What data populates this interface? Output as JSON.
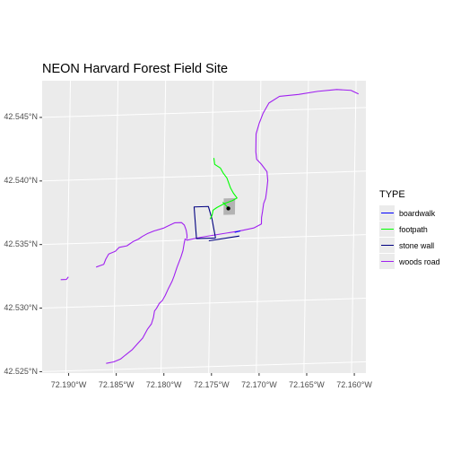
{
  "title": "NEON Harvard Forest Field Site",
  "chart_data": {
    "type": "map",
    "title": "NEON Harvard Forest Field Site",
    "crs": "geographic lon/lat",
    "xlim": [
      -72.1925,
      -72.1585
    ],
    "ylim": [
      42.5245,
      42.5475
    ],
    "x_ticks": [
      -72.19,
      -72.185,
      -72.18,
      -72.175,
      -72.17,
      -72.165,
      -72.16
    ],
    "x_tick_labels": [
      "72.190°W",
      "72.185°W",
      "72.180°W",
      "72.175°W",
      "72.170°W",
      "72.165°W",
      "72.160°W"
    ],
    "y_ticks": [
      42.525,
      42.53,
      42.535,
      42.54,
      42.545
    ],
    "y_tick_labels": [
      "42.525°N",
      "42.530°N",
      "42.535°N",
      "42.540°N",
      "42.545°N"
    ],
    "grid": true,
    "legend": {
      "title": "TYPE",
      "position": "right",
      "entries": [
        {
          "label": "boardwalk",
          "color": "#0000ff"
        },
        {
          "label": "footpath",
          "color": "#00ff00"
        },
        {
          "label": "stone wall",
          "color": "#000080"
        },
        {
          "label": "woods road",
          "color": "#a020f0"
        }
      ]
    },
    "plot_area": {
      "type": "polygon",
      "fill": "#b3b3b3",
      "coords": [
        [
          -72.1737,
          42.5382
        ],
        [
          -72.1725,
          42.5382
        ],
        [
          -72.1725,
          42.5369
        ],
        [
          -72.1737,
          42.5369
        ]
      ]
    },
    "tower": {
      "type": "point",
      "lon": -72.1732,
      "lat": 42.5374,
      "color": "#000000"
    },
    "lines": [
      {
        "type": "woods road",
        "color": "#a020f0",
        "coords": [
          [
            -72.1858,
            42.5255
          ],
          [
            -72.185,
            42.5256
          ],
          [
            -72.1843,
            42.5258
          ],
          [
            -72.1838,
            42.5261
          ],
          [
            -72.1831,
            42.5265
          ],
          [
            -72.1825,
            42.527
          ],
          [
            -72.182,
            42.5274
          ],
          [
            -72.1815,
            42.5281
          ],
          [
            -72.1811,
            42.5285
          ],
          [
            -72.1809,
            42.529
          ],
          [
            -72.1808,
            42.5295
          ],
          [
            -72.1806,
            42.5297
          ],
          [
            -72.1803,
            42.5301
          ],
          [
            -72.18,
            42.5303
          ],
          [
            -72.1797,
            42.5307
          ],
          [
            -72.1794,
            42.5312
          ],
          [
            -72.1792,
            42.5315
          ],
          [
            -72.179,
            42.5318
          ],
          [
            -72.1788,
            42.5322
          ],
          [
            -72.1785,
            42.5329
          ],
          [
            -72.1781,
            42.5337
          ],
          [
            -72.1779,
            42.5342
          ],
          [
            -72.1778,
            42.5347
          ],
          [
            -72.1777,
            42.5351
          ],
          [
            -72.1775,
            42.535
          ],
          [
            -72.176,
            42.5352
          ],
          [
            -72.174,
            42.5354
          ],
          [
            -72.172,
            42.5356
          ],
          [
            -72.1705,
            42.5358
          ],
          [
            -72.1697,
            42.5361
          ],
          [
            -72.1697,
            42.5366
          ],
          [
            -72.1696,
            42.5371
          ],
          [
            -72.1695,
            42.5377
          ],
          [
            -72.1693,
            42.5381
          ],
          [
            -72.1692,
            42.5387
          ],
          [
            -72.1691,
            42.5395
          ],
          [
            -72.1692,
            42.5402
          ],
          [
            -72.1698,
            42.5408
          ],
          [
            -72.1703,
            42.5412
          ],
          [
            -72.1704,
            42.5418
          ],
          [
            -72.1704,
            42.5425
          ],
          [
            -72.1704,
            42.5432
          ],
          [
            -72.1701,
            42.544
          ],
          [
            -72.1697,
            42.5448
          ],
          [
            -72.1691,
            42.5456
          ],
          [
            -72.168,
            42.5461
          ],
          [
            -72.166,
            42.5462
          ],
          [
            -72.164,
            42.5464
          ],
          [
            -72.162,
            42.5465
          ],
          [
            -72.1605,
            42.5464
          ],
          [
            -72.1597,
            42.5461
          ]
        ]
      },
      {
        "type": "woods road",
        "color": "#a020f0",
        "coords": [
          [
            -72.187,
            42.5331
          ],
          [
            -72.1866,
            42.5332
          ],
          [
            -72.1862,
            42.5333
          ],
          [
            -72.186,
            42.5337
          ],
          [
            -72.1857,
            42.5341
          ],
          [
            -72.185,
            42.5343
          ],
          [
            -72.1846,
            42.5346
          ],
          [
            -72.1838,
            42.5347
          ],
          [
            -72.1832,
            42.535
          ],
          [
            -72.1826,
            42.5352
          ],
          [
            -72.1822,
            42.5354
          ],
          [
            -72.1817,
            42.5356
          ],
          [
            -72.181,
            42.5358
          ],
          [
            -72.18,
            42.536
          ],
          [
            -72.1794,
            42.5362
          ],
          [
            -72.1788,
            42.5364
          ],
          [
            -72.1781,
            42.5364
          ],
          [
            -72.1778,
            42.5362
          ],
          [
            -72.1776,
            42.5358
          ],
          [
            -72.1775,
            42.5354
          ],
          [
            -72.1775,
            42.5351
          ]
        ]
      },
      {
        "type": "woods road",
        "color": "#a020f0",
        "coords": [
          [
            -72.1907,
            42.5322
          ],
          [
            -72.1901,
            42.5322
          ],
          [
            -72.1899,
            42.5324
          ]
        ]
      },
      {
        "type": "stone wall",
        "color": "#000080",
        "coords": [
          [
            -72.1745,
            42.5351
          ],
          [
            -72.1765,
            42.5351
          ],
          [
            -72.1768,
            42.5376
          ],
          [
            -72.1753,
            42.5376
          ],
          [
            -72.1749,
            42.5366
          ],
          [
            -72.1745,
            42.5351
          ]
        ]
      },
      {
        "type": "stone wall",
        "color": "#000080",
        "coords": [
          [
            -72.1752,
            42.5349
          ],
          [
            -72.172,
            42.5352
          ]
        ]
      },
      {
        "type": "boardwalk",
        "color": "#0000ff",
        "coords": [
          [
            -72.1725,
            42.5355
          ],
          [
            -72.1719,
            42.5356
          ]
        ]
      },
      {
        "type": "footpath",
        "color": "#00ff00",
        "coords": [
          [
            -72.1748,
            42.5414
          ],
          [
            -72.1747,
            42.5409
          ],
          [
            -72.1741,
            42.5406
          ],
          [
            -72.1738,
            42.5402
          ],
          [
            -72.1734,
            42.5398
          ],
          [
            -72.1732,
            42.5394
          ],
          [
            -72.173,
            42.539
          ],
          [
            -72.1727,
            42.5386
          ],
          [
            -72.1723,
            42.5382
          ],
          [
            -72.1728,
            42.538
          ],
          [
            -72.1736,
            42.5378
          ],
          [
            -72.1744,
            42.5375
          ],
          [
            -72.1748,
            42.5373
          ],
          [
            -72.1749,
            42.5369
          ],
          [
            -72.1751,
            42.5366
          ]
        ]
      },
      {
        "type": "footpath",
        "color": "#00ff00",
        "coords": [
          [
            -72.1738,
            42.5379
          ],
          [
            -72.1734,
            42.5376
          ],
          [
            -72.1732,
            42.5374
          ]
        ]
      }
    ]
  }
}
